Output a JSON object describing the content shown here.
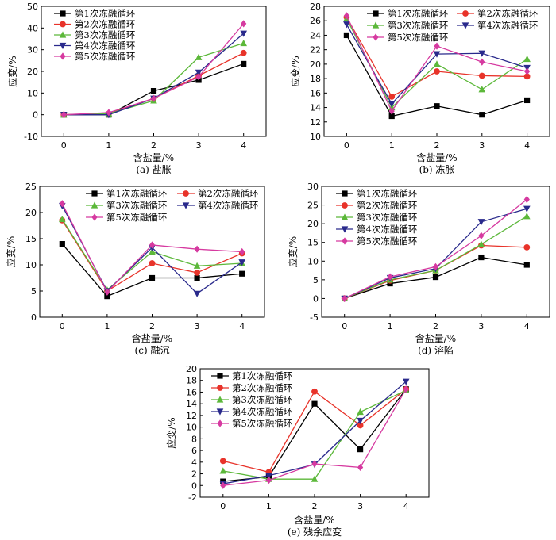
{
  "chart_data": [
    {
      "type": "line",
      "caption": "(a) 盐胀",
      "xlabel": "含盐量/%",
      "ylabel": "应变/%",
      "x": [
        0,
        1,
        2,
        3,
        4
      ],
      "xlim": [
        -0.5,
        4.5
      ],
      "ylim": [
        -10,
        50
      ],
      "yticks": [
        -10,
        0,
        10,
        20,
        30,
        40,
        50
      ],
      "legend": "top-left, 1 column",
      "series": [
        {
          "name": "第1次冻融循环",
          "values": [
            0,
            0,
            11,
            16,
            23.5
          ]
        },
        {
          "name": "第2次冻融循环",
          "values": [
            0,
            0.5,
            7.5,
            18,
            28.5
          ]
        },
        {
          "name": "第3次冻融循环",
          "values": [
            0,
            0.5,
            6.5,
            26.5,
            33
          ]
        },
        {
          "name": "第4次冻融循环",
          "values": [
            0,
            0,
            7.5,
            19.5,
            37.5
          ]
        },
        {
          "name": "第5次冻融循环",
          "values": [
            0,
            1,
            7.5,
            17.5,
            42
          ]
        }
      ]
    },
    {
      "type": "line",
      "caption": "(b) 冻胀",
      "xlabel": "含盐量/%",
      "ylabel": "应变/%",
      "x": [
        0,
        1,
        2,
        3,
        4
      ],
      "xlim": [
        -0.5,
        4.5
      ],
      "ylim": [
        10,
        28
      ],
      "yticks": [
        10,
        12,
        14,
        16,
        18,
        20,
        22,
        24,
        26,
        28
      ],
      "legend": "top, 2 columns",
      "series": [
        {
          "name": "第1次冻融循环",
          "values": [
            24,
            12.8,
            14.2,
            13,
            15
          ]
        },
        {
          "name": "第2次冻融循环",
          "values": [
            26.5,
            15.5,
            19,
            18.4,
            18.3
          ]
        },
        {
          "name": "第3次冻融循环",
          "values": [
            26.3,
            14,
            20,
            16.5,
            20.7
          ]
        },
        {
          "name": "第4次冻融循环",
          "values": [
            25.5,
            14.5,
            21.4,
            21.5,
            19.5
          ]
        },
        {
          "name": "第5次冻融循环",
          "values": [
            26.7,
            13.5,
            22.5,
            20.3,
            19
          ]
        }
      ]
    },
    {
      "type": "line",
      "caption": "(c) 融沉",
      "xlabel": "含盐量/%",
      "ylabel": "应变/%",
      "x": [
        0,
        1,
        2,
        3,
        4
      ],
      "xlim": [
        -0.5,
        4.5
      ],
      "ylim": [
        0,
        25
      ],
      "yticks": [
        0,
        5,
        10,
        15,
        20,
        25
      ],
      "legend": "top, 2 columns",
      "series": [
        {
          "name": "第1次冻融循环",
          "values": [
            14,
            4,
            7.5,
            7.5,
            8.3
          ]
        },
        {
          "name": "第2次冻融循环",
          "values": [
            18.5,
            5,
            10.3,
            8.5,
            12.2
          ]
        },
        {
          "name": "第3次冻融循环",
          "values": [
            18.7,
            5.2,
            12.5,
            9.8,
            10.3
          ]
        },
        {
          "name": "第4次冻融循环",
          "values": [
            21.3,
            5,
            13.3,
            4.5,
            10.5
          ]
        },
        {
          "name": "第5次冻融循环",
          "values": [
            21.7,
            4.8,
            13.8,
            13,
            12.5
          ]
        }
      ]
    },
    {
      "type": "line",
      "caption": "(d) 溶陷",
      "xlabel": "含盐量/%",
      "ylabel": "应变/%",
      "x": [
        0,
        1,
        2,
        3,
        4
      ],
      "xlim": [
        -0.5,
        4.5
      ],
      "ylim": [
        -5,
        30
      ],
      "yticks": [
        -5,
        0,
        5,
        10,
        15,
        20,
        25,
        30
      ],
      "legend": "top-left, 1 column",
      "series": [
        {
          "name": "第1次冻融循环",
          "values": [
            0,
            4,
            5.7,
            11,
            9
          ]
        },
        {
          "name": "第2次冻融循环",
          "values": [
            0,
            4.8,
            7.5,
            14.2,
            13.7
          ]
        },
        {
          "name": "第3次冻融循环",
          "values": [
            0,
            5,
            7.5,
            14.5,
            22
          ]
        },
        {
          "name": "第4次冻融循环",
          "values": [
            0,
            5.5,
            8,
            20.5,
            24
          ]
        },
        {
          "name": "第5次冻融循环",
          "values": [
            0,
            5.8,
            8.5,
            16.8,
            26.5
          ]
        }
      ]
    },
    {
      "type": "line",
      "caption": "(e) 残余应变",
      "xlabel": "含盐量/%",
      "ylabel": "应变/%",
      "x": [
        0,
        1,
        2,
        3,
        4
      ],
      "xlim": [
        -0.5,
        4.5
      ],
      "ylim": [
        -2,
        20
      ],
      "yticks": [
        -2,
        0,
        2,
        4,
        6,
        8,
        10,
        12,
        14,
        16,
        18,
        20
      ],
      "legend": "top-left, 1 column",
      "series": [
        {
          "name": "第1次冻融循环",
          "values": [
            0.7,
            1.5,
            14,
            6.2,
            16.5
          ]
        },
        {
          "name": "第2次冻融循环",
          "values": [
            4.2,
            2.3,
            16.1,
            10.3,
            16.5
          ]
        },
        {
          "name": "第3次冻融循环",
          "values": [
            2.5,
            1.1,
            1.1,
            12.6,
            16.3
          ]
        },
        {
          "name": "第4次冻融循环",
          "values": [
            0.3,
            1.7,
            3.6,
            11.1,
            17.8
          ]
        },
        {
          "name": "第5次冻融循环",
          "values": [
            0,
            0.9,
            3.7,
            3.1,
            16.5
          ]
        }
      ]
    }
  ],
  "series_style": [
    {
      "color": "#000000",
      "marker": "square"
    },
    {
      "color": "#e8332a",
      "marker": "circle"
    },
    {
      "color": "#5cb83a",
      "marker": "triangle-up"
    },
    {
      "color": "#2a2a8c",
      "marker": "triangle-down"
    },
    {
      "color": "#d63aa0",
      "marker": "diamond"
    }
  ]
}
